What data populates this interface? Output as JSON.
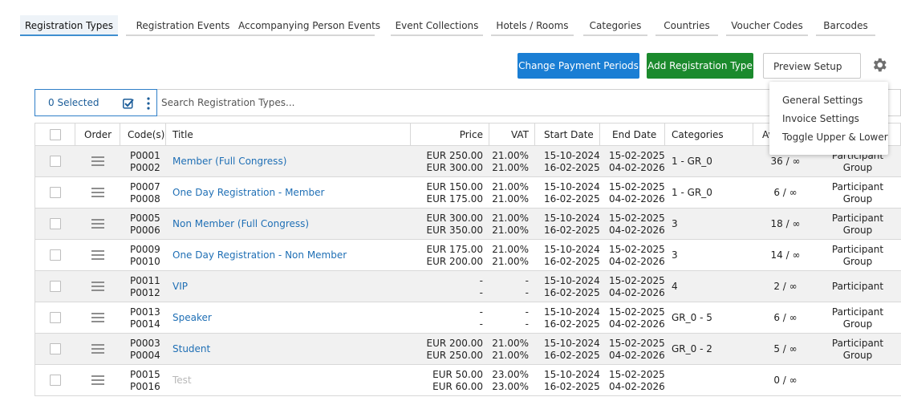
{
  "tabs": [
    {
      "label": "Registration Types"
    },
    {
      "label": "Registration Events"
    },
    {
      "label": "Accompanying Person Events"
    },
    {
      "label": "Event Collections"
    },
    {
      "label": "Hotels / Rooms"
    },
    {
      "label": "Categories"
    },
    {
      "label": "Countries"
    },
    {
      "label": "Voucher Codes"
    },
    {
      "label": "Barcodes"
    }
  ],
  "active_tab": "Registration Types",
  "toolbar": {
    "change_payment_label": "Change Payment Periods",
    "add_type_label": "Add Registration Type",
    "preview_label": "Preview Setup"
  },
  "selection": {
    "label": "0 Selected"
  },
  "search": {
    "placeholder": "Search Registration Types...",
    "value": ""
  },
  "menu": {
    "items": [
      "General Settings",
      "Invoice Settings",
      "Toggle Upper & Lower"
    ]
  },
  "table": {
    "headers": {
      "order": "Order",
      "codes": "Code(s)",
      "title": "Title",
      "price": "Price",
      "vat": "VAT",
      "start": "Start Date",
      "end": "End Date",
      "categories": "Categories",
      "availability": "Av"
    },
    "rows": [
      {
        "code1": "P0001",
        "code2": "P0002",
        "title": "Member (Full Congress)",
        "price1": "EUR 250.00",
        "price2": "EUR 300.00",
        "vat1": "21.00%",
        "vat2": "21.00%",
        "start1": "15-10-2024",
        "start2": "16-02-2025",
        "end1": "15-02-2025",
        "end2": "04-02-2026",
        "categories": "1 - GR_0",
        "avail": "36 / ∞",
        "group1": "Participant",
        "group2": "Group"
      },
      {
        "code1": "P0007",
        "code2": "P0008",
        "title": "One Day Registration - Member",
        "price1": "EUR 150.00",
        "price2": "EUR 175.00",
        "vat1": "21.00%",
        "vat2": "21.00%",
        "start1": "15-10-2024",
        "start2": "16-02-2025",
        "end1": "15-02-2025",
        "end2": "04-02-2026",
        "categories": "1 - GR_0",
        "avail": "6 / ∞",
        "group1": "Participant",
        "group2": "Group"
      },
      {
        "code1": "P0005",
        "code2": "P0006",
        "title": "Non Member (Full Congress)",
        "price1": "EUR 300.00",
        "price2": "EUR 350.00",
        "vat1": "21.00%",
        "vat2": "21.00%",
        "start1": "15-10-2024",
        "start2": "16-02-2025",
        "end1": "15-02-2025",
        "end2": "04-02-2026",
        "categories": "3",
        "avail": "18 / ∞",
        "group1": "Participant",
        "group2": "Group"
      },
      {
        "code1": "P0009",
        "code2": "P0010",
        "title": "One Day Registration - Non Member",
        "price1": "EUR 175.00",
        "price2": "EUR 200.00",
        "vat1": "21.00%",
        "vat2": "21.00%",
        "start1": "15-10-2024",
        "start2": "16-02-2025",
        "end1": "15-02-2025",
        "end2": "04-02-2026",
        "categories": "3",
        "avail": "14 / ∞",
        "group1": "Participant",
        "group2": "Group"
      },
      {
        "code1": "P0011",
        "code2": "P0012",
        "title": "VIP",
        "price1": "-",
        "price2": "-",
        "vat1": "-",
        "vat2": "-",
        "start1": "15-10-2024",
        "start2": "16-02-2025",
        "end1": "15-02-2025",
        "end2": "04-02-2026",
        "categories": "4",
        "avail": "2 / ∞",
        "group1": "Participant",
        "group2": ""
      },
      {
        "code1": "P0013",
        "code2": "P0014",
        "title": "Speaker",
        "price1": "-",
        "price2": "-",
        "vat1": "-",
        "vat2": "-",
        "start1": "15-10-2024",
        "start2": "16-02-2025",
        "end1": "15-02-2025",
        "end2": "04-02-2026",
        "categories": "GR_0 - 5",
        "avail": "6 / ∞",
        "group1": "Participant",
        "group2": "Group"
      },
      {
        "code1": "P0003",
        "code2": "P0004",
        "title": "Student",
        "price1": "EUR 200.00",
        "price2": "EUR 250.00",
        "vat1": "21.00%",
        "vat2": "21.00%",
        "start1": "15-10-2024",
        "start2": "16-02-2025",
        "end1": "15-02-2025",
        "end2": "04-02-2026",
        "categories": "GR_0 - 2",
        "avail": "5 / ∞",
        "group1": "Participant",
        "group2": "Group"
      },
      {
        "code1": "P0015",
        "code2": "P0016",
        "title": "Test",
        "price1": "EUR 50.00",
        "price2": "EUR 60.00",
        "vat1": "23.00%",
        "vat2": "23.00%",
        "start1": "15-10-2024",
        "start2": "16-02-2025",
        "end1": "15-02-2025",
        "end2": "04-02-2026",
        "categories": "",
        "avail": "0 / ∞",
        "group1": "",
        "group2": "",
        "muted": true
      }
    ]
  },
  "colors": {
    "primary_blue": "#1a7ed4",
    "success_green": "#1b8a2d",
    "link_blue": "#1f6fb5",
    "row_alt": "#f1f1f1"
  }
}
